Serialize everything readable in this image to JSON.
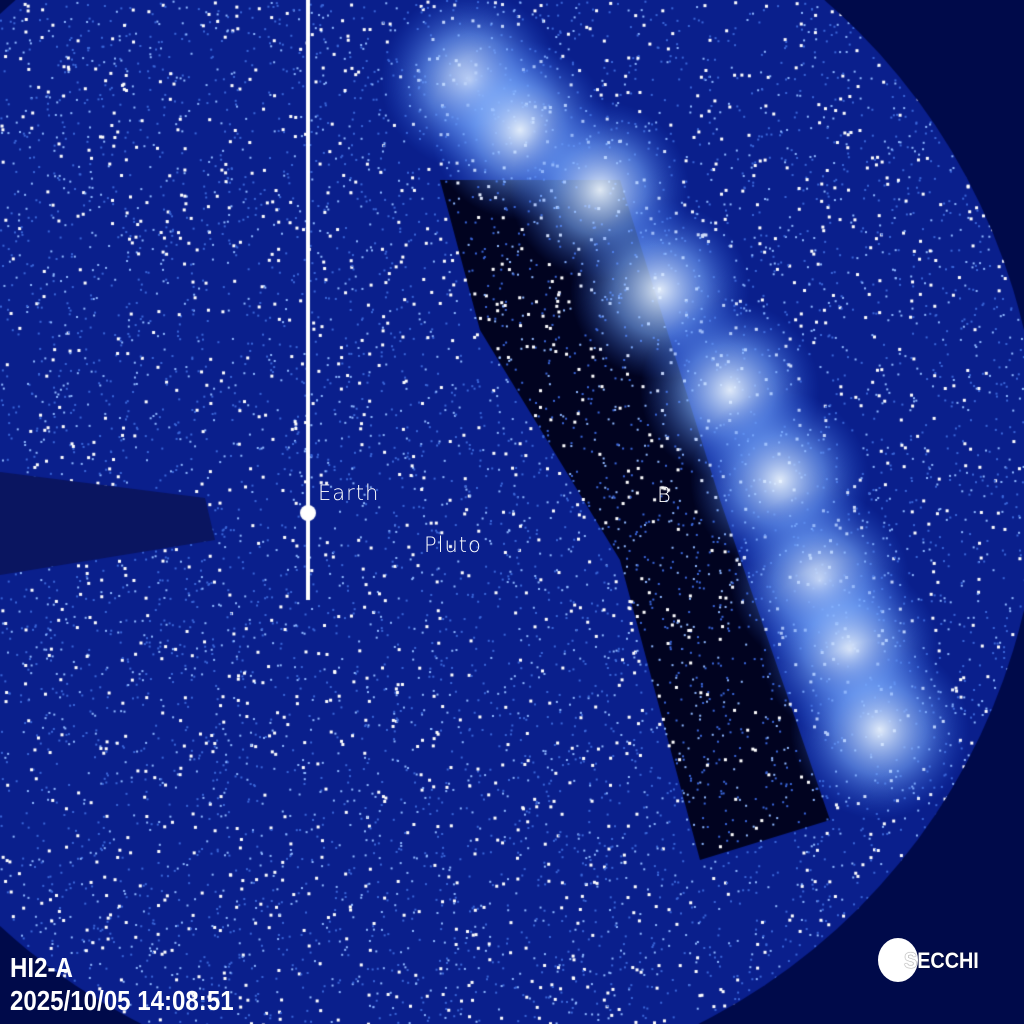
{
  "instrument": "HI2-A",
  "timestamp": "2025/10/05 14:08:51",
  "logo": "SECCHI",
  "labels": {
    "earth": "Earth",
    "pluto": "Pluto",
    "b": "B"
  },
  "colors": {
    "background": "#020c5c",
    "star": "#ffffff",
    "glow": "#4a90ff"
  }
}
